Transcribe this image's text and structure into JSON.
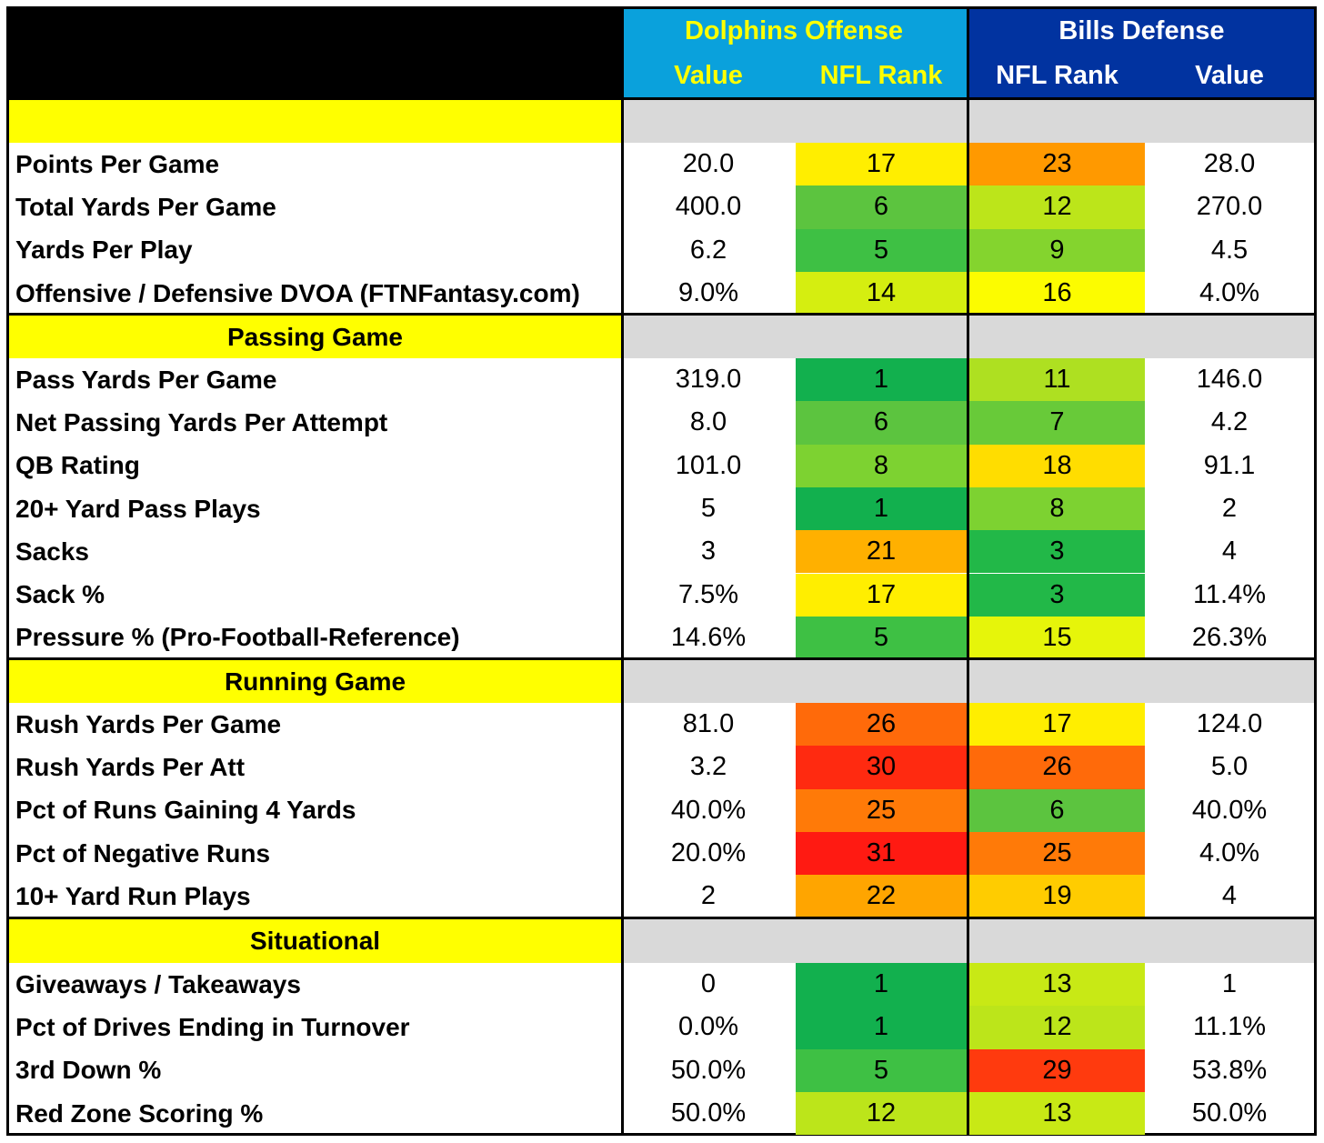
{
  "header": {
    "dolphins_title": "Dolphins Offense",
    "bills_title": "Bills Defense",
    "col_value": "Value",
    "col_rank": "NFL Rank"
  },
  "colors": {
    "dolphins_header": "#0aa1dc",
    "bills_header": "#0133a0",
    "section_yellow": "#ffff00",
    "section_gray": "#d9d9d9"
  },
  "sections": [
    {
      "title": "",
      "rows": [
        {
          "label": "Points Per Game",
          "dol_value": "20.0",
          "dol_rank": "17",
          "bills_rank": "23",
          "bills_value": "28.0",
          "dol_color": "#ffee00",
          "bills_color": "#ff9900"
        },
        {
          "label": "Total Yards Per Game",
          "dol_value": "400.0",
          "dol_rank": "6",
          "bills_rank": "12",
          "bills_value": "270.0",
          "dol_color": "#5cc43f",
          "bills_color": "#bce51a"
        },
        {
          "label": "Yards Per Play",
          "dol_value": "6.2",
          "dol_rank": "5",
          "bills_rank": "9",
          "bills_value": "4.5",
          "dol_color": "#3ec044",
          "bills_color": "#84d42e"
        },
        {
          "label": "Offensive / Defensive DVOA (FTNFantasy.com)",
          "dol_value": "9.0%",
          "dol_rank": "14",
          "bills_rank": "16",
          "bills_value": "4.0%",
          "dol_color": "#d5ee10",
          "bills_color": "#fcfc00"
        }
      ]
    },
    {
      "title": "Passing Game",
      "rows": [
        {
          "label": "Pass Yards Per Game",
          "dol_value": "319.0",
          "dol_rank": "1",
          "bills_rank": "11",
          "bills_value": "146.0",
          "dol_color": "#12b04e",
          "bills_color": "#aee021"
        },
        {
          "label": "Net Passing Yards Per Attempt",
          "dol_value": "8.0",
          "dol_rank": "6",
          "bills_rank": "7",
          "bills_value": "4.2",
          "dol_color": "#5cc43f",
          "bills_color": "#68ca39"
        },
        {
          "label": "QB Rating",
          "dol_value": "101.0",
          "dol_rank": "8",
          "bills_rank": "18",
          "bills_value": "91.1",
          "dol_color": "#7dd231",
          "bills_color": "#ffdd00"
        },
        {
          "label": "20+ Yard Pass Plays",
          "dol_value": "5",
          "dol_rank": "1",
          "bills_rank": "8",
          "bills_value": "2",
          "dol_color": "#12b04e",
          "bills_color": "#7dd231"
        },
        {
          "label": "Sacks",
          "dol_value": "3",
          "dol_rank": "21",
          "bills_rank": "3",
          "bills_value": "4",
          "dol_color": "#ffb000",
          "bills_color": "#22b848"
        },
        {
          "label": "Sack %",
          "dol_value": "7.5%",
          "dol_rank": "17",
          "bills_rank": "3",
          "bills_value": "11.4%",
          "dol_color": "#ffee00",
          "bills_color": "#22b848"
        },
        {
          "label": "Pressure % (Pro-Football-Reference)",
          "dol_value": "14.6%",
          "dol_rank": "5",
          "bills_rank": "15",
          "bills_value": "26.3%",
          "dol_color": "#3ec044",
          "bills_color": "#e6f50a"
        }
      ]
    },
    {
      "title": "Running Game",
      "rows": [
        {
          "label": "Rush Yards Per Game",
          "dol_value": "81.0",
          "dol_rank": "26",
          "bills_rank": "17",
          "bills_value": "124.0",
          "dol_color": "#ff6a0a",
          "bills_color": "#ffee00"
        },
        {
          "label": "Rush Yards Per Att",
          "dol_value": "3.2",
          "dol_rank": "30",
          "bills_rank": "26",
          "bills_value": "5.0",
          "dol_color": "#ff2a10",
          "bills_color": "#ff6a0a"
        },
        {
          "label": "Pct of Runs Gaining 4 Yards",
          "dol_value": "40.0%",
          "dol_rank": "25",
          "bills_rank": "6",
          "bills_value": "40.0%",
          "dol_color": "#ff7a08",
          "bills_color": "#5cc43f"
        },
        {
          "label": "Pct of Negative Runs",
          "dol_value": "20.0%",
          "dol_rank": "31",
          "bills_rank": "25",
          "bills_value": "4.0%",
          "dol_color": "#ff1a12",
          "bills_color": "#ff7a08"
        },
        {
          "label": "10+ Yard Run Plays",
          "dol_value": "2",
          "dol_rank": "22",
          "bills_rank": "19",
          "bills_value": "4",
          "dol_color": "#ffa500",
          "bills_color": "#ffcc00"
        }
      ]
    },
    {
      "title": "Situational",
      "rows": [
        {
          "label": "Giveaways / Takeaways",
          "dol_value": "0",
          "dol_rank": "1",
          "bills_rank": "13",
          "bills_value": "1",
          "dol_color": "#12b04e",
          "bills_color": "#c8e915"
        },
        {
          "label": "Pct of Drives Ending in Turnover",
          "dol_value": "0.0%",
          "dol_rank": "1",
          "bills_rank": "12",
          "bills_value": "11.1%",
          "dol_color": "#12b04e",
          "bills_color": "#bce51a"
        },
        {
          "label": "3rd Down %",
          "dol_value": "50.0%",
          "dol_rank": "5",
          "bills_rank": "29",
          "bills_value": "53.8%",
          "dol_color": "#3ec044",
          "bills_color": "#ff3a0e"
        },
        {
          "label": "Red Zone Scoring %",
          "dol_value": "50.0%",
          "dol_rank": "12",
          "bills_rank": "13",
          "bills_value": "50.0%",
          "dol_color": "#bce51a",
          "bills_color": "#c8e915"
        }
      ]
    }
  ]
}
